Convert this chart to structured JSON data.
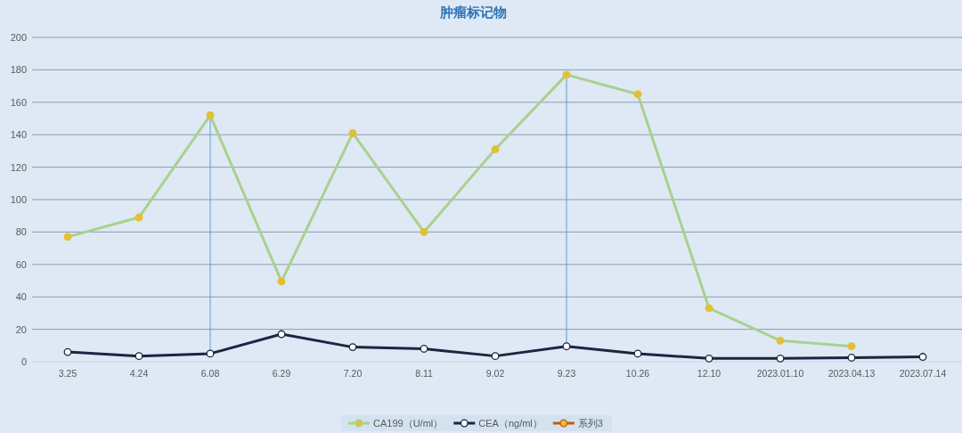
{
  "chart_data": {
    "type": "line",
    "title": "肿瘤标记物",
    "categories": [
      "3.25",
      "4.24",
      "6.08",
      "6.29",
      "7.20",
      "8.11",
      "9.02",
      "9.23",
      "10.26",
      "12.10",
      "2023.01.10",
      "2023.04.13",
      "2023.07.14"
    ],
    "series": [
      {
        "name": "CA199（U/ml）",
        "color": "#a9d18e",
        "colors": [
          "#e2c033",
          "#e2c033",
          "#e2c033",
          "#e2c033",
          "#e2c033",
          "#e2c033",
          "#e2c033",
          "#e2c033",
          "#e2c033",
          "#e2c033",
          "#e2c033",
          "#e2c033",
          null
        ],
        "values": [
          77,
          89,
          152,
          49.5,
          141,
          80,
          131,
          177,
          165,
          33,
          13,
          9.5,
          null
        ]
      },
      {
        "name": "CEA（ng/ml）",
        "color": "#1c2541",
        "colors": [
          "#ffffff",
          "#ffffff",
          "#ffffff",
          "#ffffff",
          "#ffffff",
          "#ffffff",
          "#ffffff",
          "#ffffff",
          "#ffffff",
          "#ffffff",
          "#ffffff",
          "#ffffff",
          "#ffffff"
        ],
        "values": [
          6,
          3.5,
          5,
          17,
          9,
          8,
          3.5,
          9.5,
          5,
          2,
          2,
          2.5,
          3
        ]
      },
      {
        "name": "系列3",
        "color": "#c55a11",
        "colors": [
          "#e2c033",
          null,
          null,
          null,
          null,
          null,
          null,
          null,
          null,
          null,
          null,
          null,
          null
        ],
        "values": [
          null,
          null,
          null,
          null,
          null,
          null,
          null,
          null,
          null,
          null,
          null,
          null,
          null
        ]
      }
    ],
    "ylim": [
      0,
      200
    ],
    "yticks": [
      0,
      20,
      40,
      60,
      80,
      100,
      120,
      140,
      160,
      180,
      200
    ],
    "grid": "y",
    "legend": "bottom",
    "marker": "circle",
    "line_style": "solid",
    "ref_lines": [
      {
        "axis": "x",
        "value": "6.08",
        "color": "#5b9bd5"
      },
      {
        "axis": "x",
        "value": "9.23",
        "color": "#5b9bd5"
      }
    ]
  }
}
